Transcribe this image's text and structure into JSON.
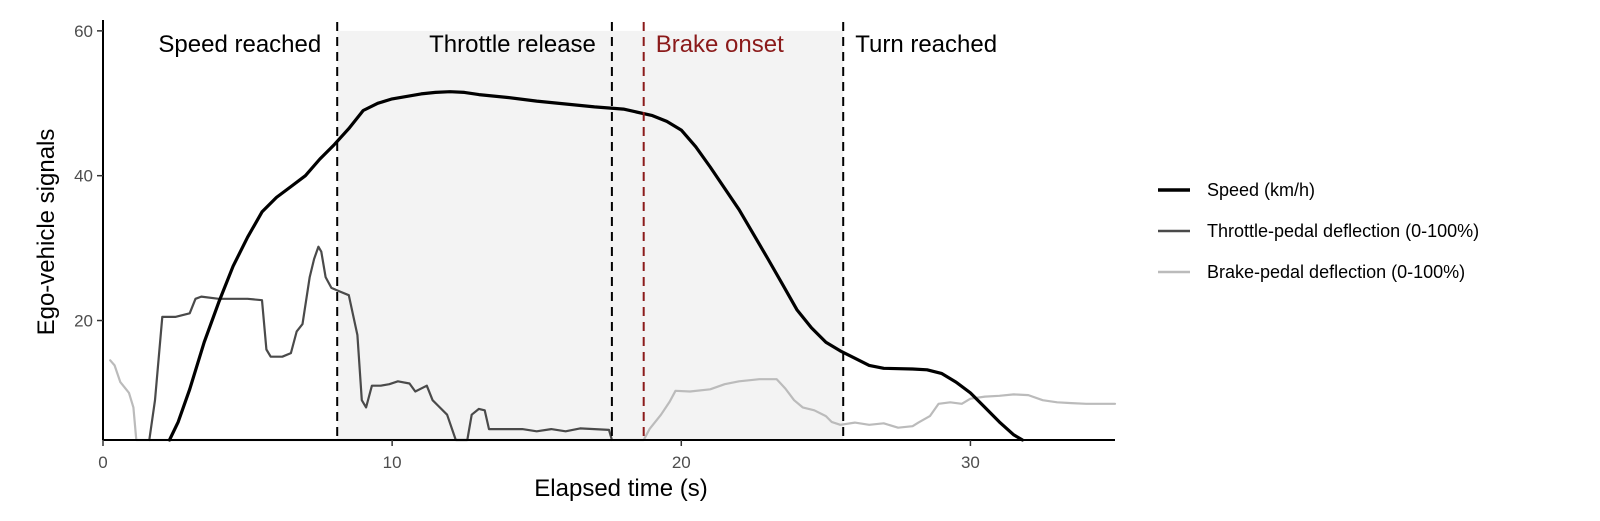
{
  "chart_data": {
    "type": "line",
    "xlabel": "Elapsed time (s)",
    "ylabel": "Ego-vehicle signals",
    "xlim": [
      0,
      35
    ],
    "ylim": [
      3.5,
      61.5
    ],
    "x_ticks": [
      0,
      10,
      20,
      30
    ],
    "y_ticks": [
      20,
      40,
      60
    ],
    "grid": false,
    "legend_position": "right",
    "shaded_regions": [
      {
        "start": 8.1,
        "end": 25.6,
        "color": "#f3f3f3"
      }
    ],
    "event_lines": [
      {
        "x": 8.1,
        "label": "Speed reached",
        "color": "#000000",
        "label_side": "left"
      },
      {
        "x": 17.6,
        "label": "Throttle release",
        "color": "#000000",
        "label_side": "left"
      },
      {
        "x": 18.7,
        "label": "Brake onset",
        "color": "#8b1a1a",
        "label_side": "right"
      },
      {
        "x": 25.6,
        "label": "Turn reached",
        "color": "#000000",
        "label_side": "right"
      }
    ],
    "series": [
      {
        "name": "Speed (km/h)",
        "color": "#000000",
        "points": [
          [
            2.3,
            3.5
          ],
          [
            2.6,
            6
          ],
          [
            3,
            10.5
          ],
          [
            3.5,
            17
          ],
          [
            4,
            22.5
          ],
          [
            4.5,
            27.5
          ],
          [
            5,
            31.5
          ],
          [
            5.5,
            35
          ],
          [
            6,
            37
          ],
          [
            6.5,
            38.5
          ],
          [
            7,
            40
          ],
          [
            7.5,
            42.3
          ],
          [
            8,
            44.3
          ],
          [
            8.5,
            46.5
          ],
          [
            9,
            49
          ],
          [
            9.5,
            50
          ],
          [
            10,
            50.6
          ],
          [
            11,
            51.3
          ],
          [
            11.5,
            51.5
          ],
          [
            12,
            51.6
          ],
          [
            12.5,
            51.5
          ],
          [
            13,
            51.2
          ],
          [
            14,
            50.8
          ],
          [
            15,
            50.3
          ],
          [
            16,
            49.9
          ],
          [
            17,
            49.5
          ],
          [
            18,
            49.2
          ],
          [
            19,
            48.3
          ],
          [
            19.5,
            47.5
          ],
          [
            20,
            46.3
          ],
          [
            20.5,
            44
          ],
          [
            21,
            41.2
          ],
          [
            22,
            35.3
          ],
          [
            23,
            28.5
          ],
          [
            23.5,
            25
          ],
          [
            24,
            21.5
          ],
          [
            24.5,
            19
          ],
          [
            25,
            17
          ],
          [
            25.5,
            15.8
          ],
          [
            26,
            14.8
          ],
          [
            26.5,
            13.8
          ],
          [
            27,
            13.4
          ],
          [
            28,
            13.3
          ],
          [
            28.5,
            13.2
          ],
          [
            29,
            12.7
          ],
          [
            29.5,
            11.5
          ],
          [
            30,
            10
          ],
          [
            30.5,
            8
          ],
          [
            31,
            6
          ],
          [
            31.5,
            4.2
          ],
          [
            31.8,
            3.5
          ]
        ]
      },
      {
        "name": "Throttle-pedal deflection (0-100%)",
        "color": "#4a4a4a",
        "points": [
          [
            1.6,
            3.5
          ],
          [
            1.8,
            9
          ],
          [
            2.05,
            20.5
          ],
          [
            2.5,
            20.5
          ],
          [
            3,
            21
          ],
          [
            3.2,
            23
          ],
          [
            3.4,
            23.3
          ],
          [
            4,
            23
          ],
          [
            5,
            23
          ],
          [
            5.5,
            22.8
          ],
          [
            5.65,
            16
          ],
          [
            5.8,
            15
          ],
          [
            6.2,
            15
          ],
          [
            6.5,
            15.5
          ],
          [
            6.7,
            18.5
          ],
          [
            6.9,
            19.5
          ],
          [
            7.15,
            26
          ],
          [
            7.3,
            28.5
          ],
          [
            7.45,
            30.2
          ],
          [
            7.55,
            29.5
          ],
          [
            7.7,
            26
          ],
          [
            7.9,
            24.5
          ],
          [
            8.2,
            24
          ],
          [
            8.5,
            23.5
          ],
          [
            8.8,
            18
          ],
          [
            8.95,
            9
          ],
          [
            9.1,
            8
          ],
          [
            9.3,
            11
          ],
          [
            9.6,
            11
          ],
          [
            9.9,
            11.2
          ],
          [
            10.2,
            11.6
          ],
          [
            10.6,
            11.3
          ],
          [
            10.8,
            10.2
          ],
          [
            11.2,
            11
          ],
          [
            11.4,
            9
          ],
          [
            11.6,
            8.2
          ],
          [
            11.9,
            7
          ],
          [
            12.2,
            3.5
          ],
          [
            12.6,
            3.5
          ],
          [
            12.75,
            7
          ],
          [
            13,
            7.8
          ],
          [
            13.2,
            7.6
          ],
          [
            13.35,
            5
          ],
          [
            13.8,
            5
          ],
          [
            14.5,
            5
          ],
          [
            15,
            4.7
          ],
          [
            15.5,
            5
          ],
          [
            16,
            4.7
          ],
          [
            16.5,
            5.1
          ],
          [
            17,
            5
          ],
          [
            17.5,
            4.9
          ],
          [
            17.6,
            3.5
          ]
        ]
      },
      {
        "name": "Brake-pedal deflection (0-100%)",
        "color": "#bbbbbb",
        "points": [
          [
            0.25,
            14.5
          ],
          [
            0.4,
            13.8
          ],
          [
            0.6,
            11.5
          ],
          [
            0.9,
            10
          ],
          [
            1.05,
            8
          ],
          [
            1.15,
            3.5
          ],
          [
            18.7,
            3.5
          ],
          [
            18.9,
            5
          ],
          [
            19.3,
            7
          ],
          [
            19.6,
            8.8
          ],
          [
            19.8,
            10.3
          ],
          [
            20.3,
            10.2
          ],
          [
            21,
            10.5
          ],
          [
            21.5,
            11.2
          ],
          [
            22,
            11.6
          ],
          [
            22.7,
            11.9
          ],
          [
            23.3,
            11.9
          ],
          [
            23.6,
            10.6
          ],
          [
            23.9,
            9
          ],
          [
            24.2,
            8
          ],
          [
            24.6,
            7.6
          ],
          [
            25,
            6.8
          ],
          [
            25.2,
            6
          ],
          [
            25.5,
            5.6
          ],
          [
            26,
            5.9
          ],
          [
            26.5,
            5.6
          ],
          [
            27,
            5.8
          ],
          [
            27.5,
            5.2
          ],
          [
            28,
            5.4
          ],
          [
            28.2,
            5.9
          ],
          [
            28.6,
            6.8
          ],
          [
            28.9,
            8.5
          ],
          [
            29.3,
            8.7
          ],
          [
            29.7,
            8.5
          ],
          [
            30,
            9.2
          ],
          [
            30.5,
            9.5
          ],
          [
            31,
            9.6
          ],
          [
            31.5,
            9.8
          ],
          [
            32,
            9.7
          ],
          [
            32.5,
            9
          ],
          [
            33,
            8.7
          ],
          [
            33.5,
            8.6
          ],
          [
            34,
            8.5
          ],
          [
            35,
            8.5
          ]
        ]
      }
    ]
  }
}
